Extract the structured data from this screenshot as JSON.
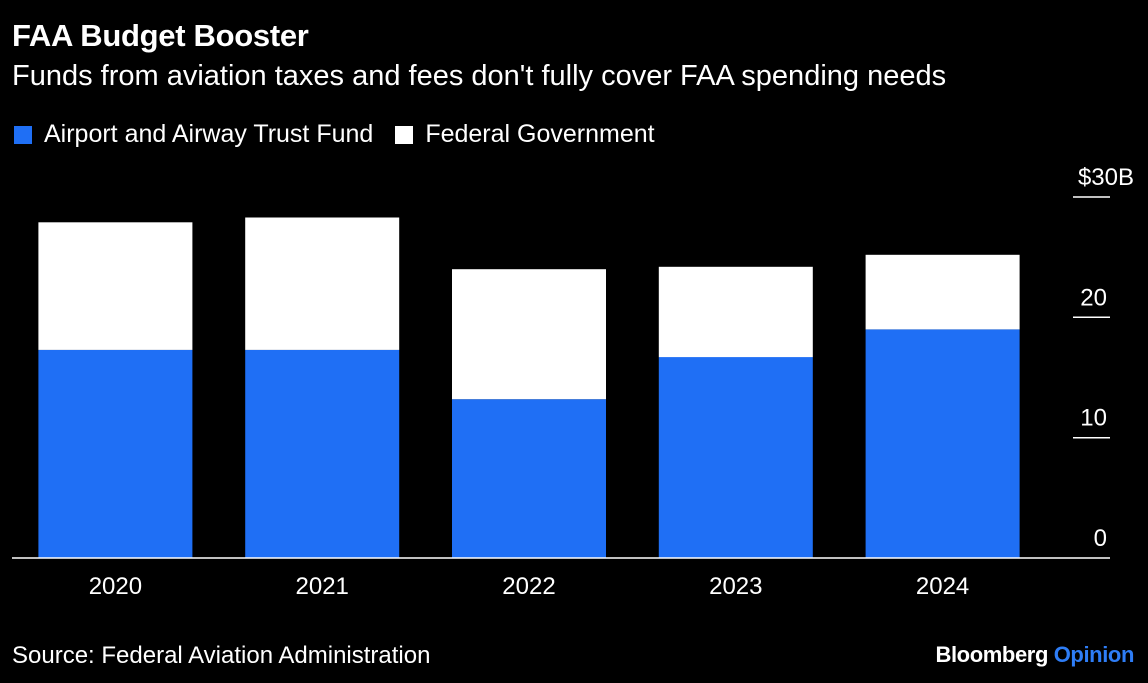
{
  "chart_data": {
    "type": "bar",
    "stacked": true,
    "title": "FAA Budget Booster",
    "subtitle": "Funds from aviation taxes and fees don't fully cover FAA spending needs",
    "categories": [
      "2020",
      "2021",
      "2022",
      "2023",
      "2024"
    ],
    "series": [
      {
        "name": "Airport and Airway Trust Fund",
        "color": "#1f6ff5",
        "values": [
          17.3,
          17.3,
          13.2,
          16.7,
          19.0
        ]
      },
      {
        "name": "Federal Government",
        "color": "#ffffff",
        "values": [
          10.6,
          11.0,
          10.8,
          7.5,
          6.2
        ]
      }
    ],
    "ylim": [
      0,
      30
    ],
    "yticks": [
      {
        "value": 0,
        "label": "0"
      },
      {
        "value": 10,
        "label": "10"
      },
      {
        "value": 20,
        "label": "20"
      },
      {
        "value": 30,
        "label": "$30B"
      }
    ],
    "axis_position": "right",
    "legend_position": "top-left",
    "grid": false
  },
  "footer": {
    "source": "Source: Federal Aviation Administration",
    "brand_primary": "Bloomberg",
    "brand_secondary": "Opinion"
  }
}
